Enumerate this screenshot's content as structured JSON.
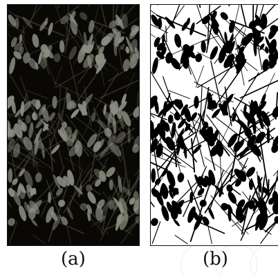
{
  "captions": {
    "a": "(a)",
    "b": "(b)"
  },
  "panels": {
    "a": {
      "content": "grayscale-plant-photo"
    },
    "b": {
      "content": "binary-segmentation-mask"
    }
  },
  "colors": {
    "panel_a_background": "#0a0805",
    "panel_a_leaf": "#8a8d80",
    "panel_b_background": "#ffffff",
    "panel_b_mask": "#000000"
  }
}
